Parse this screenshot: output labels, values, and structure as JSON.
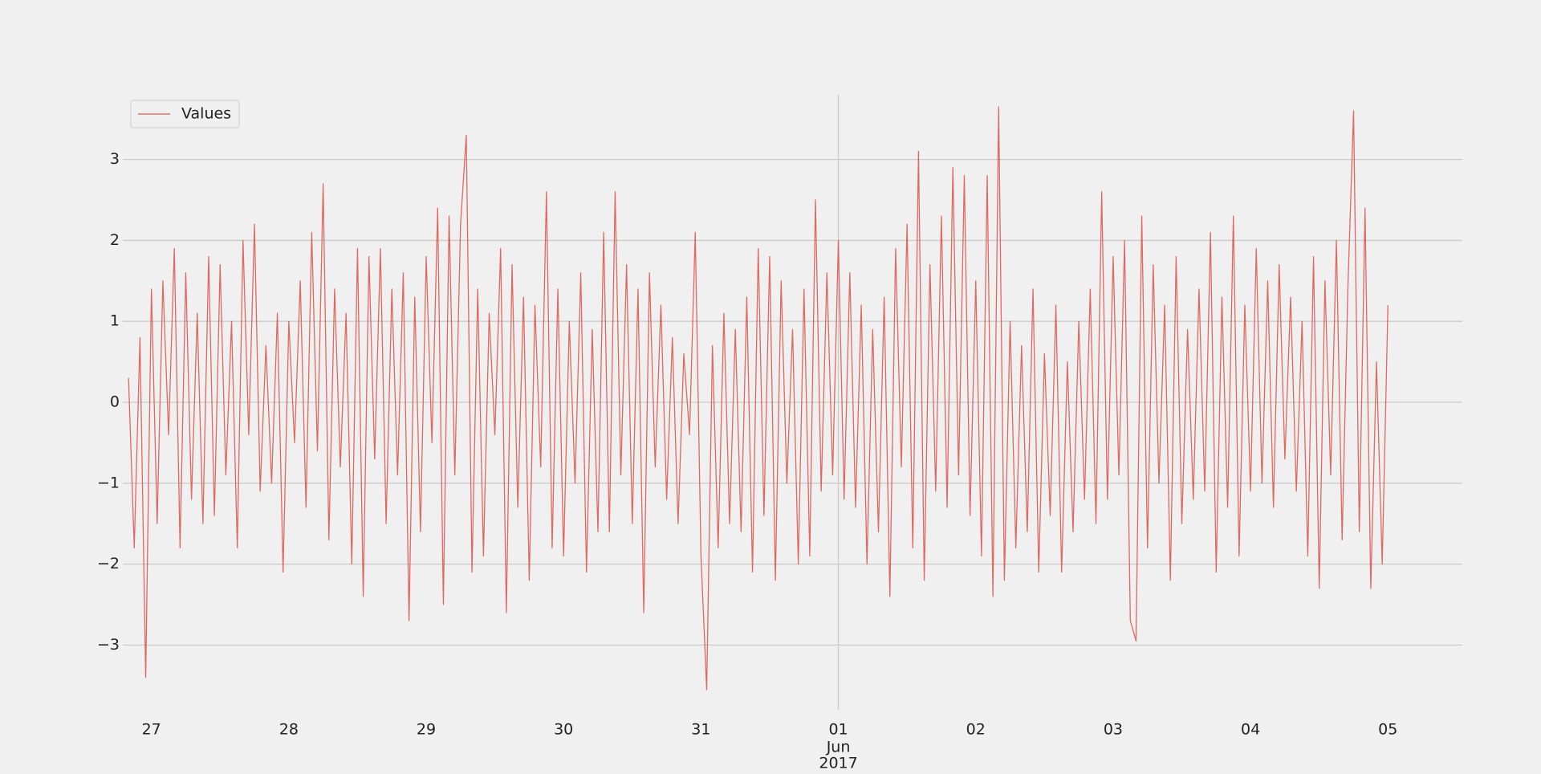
{
  "chart_data": {
    "type": "line",
    "x": [
      "2017-05-26T20:00",
      "2017-05-26T21:00",
      "2017-05-26T22:00",
      "2017-05-26T23:00",
      "2017-05-27T00:00",
      "2017-05-27T01:00",
      "2017-05-27T02:00",
      "2017-05-27T03:00",
      "2017-05-27T04:00",
      "2017-05-27T05:00",
      "2017-05-27T06:00",
      "2017-05-27T07:00",
      "2017-05-27T08:00",
      "2017-05-27T09:00",
      "2017-05-27T10:00",
      "2017-05-27T11:00",
      "2017-05-27T12:00",
      "2017-05-27T13:00",
      "2017-05-27T14:00",
      "2017-05-27T15:00",
      "2017-05-27T16:00",
      "2017-05-27T17:00",
      "2017-05-27T18:00",
      "2017-05-27T19:00",
      "2017-05-27T20:00",
      "2017-05-27T21:00",
      "2017-05-27T22:00",
      "2017-05-27T23:00",
      "2017-05-28T00:00",
      "2017-05-28T01:00",
      "2017-05-28T02:00",
      "2017-05-28T03:00",
      "2017-05-28T04:00",
      "2017-05-28T05:00",
      "2017-05-28T06:00",
      "2017-05-28T07:00",
      "2017-05-28T08:00",
      "2017-05-28T09:00",
      "2017-05-28T10:00",
      "2017-05-28T11:00",
      "2017-05-28T12:00",
      "2017-05-28T13:00",
      "2017-05-28T14:00",
      "2017-05-28T15:00",
      "2017-05-28T16:00",
      "2017-05-28T17:00",
      "2017-05-28T18:00",
      "2017-05-28T19:00",
      "2017-05-28T20:00",
      "2017-05-28T21:00",
      "2017-05-28T22:00",
      "2017-05-28T23:00",
      "2017-05-29T00:00",
      "2017-05-29T01:00",
      "2017-05-29T02:00",
      "2017-05-29T03:00",
      "2017-05-29T04:00",
      "2017-05-29T05:00",
      "2017-05-29T06:00",
      "2017-05-29T07:00",
      "2017-05-29T08:00",
      "2017-05-29T09:00",
      "2017-05-29T10:00",
      "2017-05-29T11:00",
      "2017-05-29T12:00",
      "2017-05-29T13:00",
      "2017-05-29T14:00",
      "2017-05-29T15:00",
      "2017-05-29T16:00",
      "2017-05-29T17:00",
      "2017-05-29T18:00",
      "2017-05-29T19:00",
      "2017-05-29T20:00",
      "2017-05-29T21:00",
      "2017-05-29T22:00",
      "2017-05-29T23:00",
      "2017-05-30T00:00",
      "2017-05-30T01:00",
      "2017-05-30T02:00",
      "2017-05-30T03:00",
      "2017-05-30T04:00",
      "2017-05-30T05:00",
      "2017-05-30T06:00",
      "2017-05-30T07:00",
      "2017-05-30T08:00",
      "2017-05-30T09:00",
      "2017-05-30T10:00",
      "2017-05-30T11:00",
      "2017-05-30T12:00",
      "2017-05-30T13:00",
      "2017-05-30T14:00",
      "2017-05-30T15:00",
      "2017-05-30T16:00",
      "2017-05-30T17:00",
      "2017-05-30T18:00",
      "2017-05-30T19:00",
      "2017-05-30T20:00",
      "2017-05-30T21:00",
      "2017-05-30T22:00",
      "2017-05-30T23:00",
      "2017-05-31T00:00",
      "2017-05-31T01:00",
      "2017-05-31T02:00",
      "2017-05-31T03:00",
      "2017-05-31T04:00",
      "2017-05-31T05:00",
      "2017-05-31T06:00",
      "2017-05-31T07:00",
      "2017-05-31T08:00",
      "2017-05-31T09:00",
      "2017-05-31T10:00",
      "2017-05-31T11:00",
      "2017-05-31T12:00",
      "2017-05-31T13:00",
      "2017-05-31T14:00",
      "2017-05-31T15:00",
      "2017-05-31T16:00",
      "2017-05-31T17:00",
      "2017-05-31T18:00",
      "2017-05-31T19:00",
      "2017-05-31T20:00",
      "2017-05-31T21:00",
      "2017-05-31T22:00",
      "2017-05-31T23:00",
      "2017-06-01T00:00",
      "2017-06-01T01:00",
      "2017-06-01T02:00",
      "2017-06-01T03:00",
      "2017-06-01T04:00",
      "2017-06-01T05:00",
      "2017-06-01T06:00",
      "2017-06-01T07:00",
      "2017-06-01T08:00",
      "2017-06-01T09:00",
      "2017-06-01T10:00",
      "2017-06-01T11:00",
      "2017-06-01T12:00",
      "2017-06-01T13:00",
      "2017-06-01T14:00",
      "2017-06-01T15:00",
      "2017-06-01T16:00",
      "2017-06-01T17:00",
      "2017-06-01T18:00",
      "2017-06-01T19:00",
      "2017-06-01T20:00",
      "2017-06-01T21:00",
      "2017-06-01T22:00",
      "2017-06-01T23:00",
      "2017-06-02T00:00",
      "2017-06-02T01:00",
      "2017-06-02T02:00",
      "2017-06-02T03:00",
      "2017-06-02T04:00",
      "2017-06-02T05:00",
      "2017-06-02T06:00",
      "2017-06-02T07:00",
      "2017-06-02T08:00",
      "2017-06-02T09:00",
      "2017-06-02T10:00",
      "2017-06-02T11:00",
      "2017-06-02T12:00",
      "2017-06-02T13:00",
      "2017-06-02T14:00",
      "2017-06-02T15:00",
      "2017-06-02T16:00",
      "2017-06-02T17:00",
      "2017-06-02T18:00",
      "2017-06-02T19:00",
      "2017-06-02T20:00",
      "2017-06-02T21:00",
      "2017-06-02T22:00",
      "2017-06-02T23:00",
      "2017-06-03T00:00",
      "2017-06-03T01:00",
      "2017-06-03T02:00",
      "2017-06-03T03:00",
      "2017-06-03T04:00",
      "2017-06-03T05:00",
      "2017-06-03T06:00",
      "2017-06-03T07:00",
      "2017-06-03T08:00",
      "2017-06-03T09:00",
      "2017-06-03T10:00",
      "2017-06-03T11:00",
      "2017-06-03T12:00",
      "2017-06-03T13:00",
      "2017-06-03T14:00",
      "2017-06-03T15:00",
      "2017-06-03T16:00",
      "2017-06-03T17:00",
      "2017-06-03T18:00",
      "2017-06-03T19:00",
      "2017-06-03T20:00",
      "2017-06-03T21:00",
      "2017-06-03T22:00",
      "2017-06-03T23:00",
      "2017-06-04T00:00",
      "2017-06-04T01:00",
      "2017-06-04T02:00",
      "2017-06-04T03:00",
      "2017-06-04T04:00",
      "2017-06-04T05:00",
      "2017-06-04T06:00",
      "2017-06-04T07:00",
      "2017-06-04T08:00",
      "2017-06-04T09:00",
      "2017-06-04T10:00",
      "2017-06-04T11:00",
      "2017-06-04T12:00",
      "2017-06-04T13:00",
      "2017-06-04T14:00",
      "2017-06-04T15:00",
      "2017-06-04T16:00",
      "2017-06-04T17:00",
      "2017-06-04T18:00",
      "2017-06-04T19:00",
      "2017-06-04T20:00",
      "2017-06-04T21:00",
      "2017-06-04T22:00",
      "2017-06-04T23:00",
      "2017-06-05T00:00"
    ],
    "series": [
      {
        "name": "Values",
        "color": "#dc5a50",
        "values": [
          0.3,
          -1.8,
          0.8,
          -3.4,
          1.4,
          -1.5,
          1.5,
          -0.4,
          1.9,
          -1.8,
          1.6,
          -1.2,
          1.1,
          -1.5,
          1.8,
          -1.4,
          1.7,
          -0.9,
          1.0,
          -1.8,
          2.0,
          -0.4,
          2.2,
          -1.1,
          0.7,
          -1.0,
          1.1,
          -2.1,
          1.0,
          -0.5,
          1.5,
          -1.3,
          2.1,
          -0.6,
          2.7,
          -1.7,
          1.4,
          -0.8,
          1.1,
          -2.0,
          1.9,
          -2.4,
          1.8,
          -0.7,
          1.9,
          -1.5,
          1.4,
          -0.9,
          1.6,
          -2.7,
          1.3,
          -1.6,
          1.8,
          -0.5,
          2.4,
          -2.5,
          2.3,
          -0.9,
          2.2,
          3.3,
          -2.1,
          1.4,
          -1.9,
          1.1,
          -0.4,
          1.9,
          -2.6,
          1.7,
          -1.3,
          1.3,
          -2.2,
          1.2,
          -0.8,
          2.6,
          -1.8,
          1.4,
          -1.9,
          1.0,
          -1.0,
          1.6,
          -2.1,
          0.9,
          -1.6,
          2.1,
          -1.6,
          2.6,
          -0.9,
          1.7,
          -1.5,
          1.4,
          -2.6,
          1.6,
          -0.8,
          1.2,
          -1.2,
          0.8,
          -1.5,
          0.6,
          -0.4,
          2.1,
          -1.9,
          -3.55,
          0.7,
          -1.8,
          1.1,
          -1.5,
          0.9,
          -1.6,
          1.3,
          -2.1,
          1.9,
          -1.4,
          1.8,
          -2.2,
          1.5,
          -1.0,
          0.9,
          -2.0,
          1.4,
          -1.9,
          2.5,
          -1.1,
          1.6,
          -0.9,
          2.0,
          -1.2,
          1.6,
          -1.3,
          1.2,
          -2.0,
          0.9,
          -1.6,
          1.3,
          -2.4,
          1.9,
          -0.8,
          2.2,
          -1.8,
          3.1,
          -2.2,
          1.7,
          -1.1,
          2.3,
          -1.3,
          2.9,
          -0.9,
          2.8,
          -1.4,
          1.5,
          -1.9,
          2.8,
          -2.4,
          3.65,
          -2.2,
          1.0,
          -1.8,
          0.7,
          -1.6,
          1.4,
          -2.1,
          0.6,
          -1.4,
          1.2,
          -2.1,
          0.5,
          -1.6,
          1.0,
          -1.2,
          1.4,
          -1.5,
          2.6,
          -1.2,
          1.8,
          -0.9,
          2.0,
          -2.7,
          -2.95,
          2.3,
          -1.8,
          1.7,
          -1.0,
          1.2,
          -2.2,
          1.8,
          -1.5,
          0.9,
          -1.2,
          1.4,
          -1.1,
          2.1,
          -2.1,
          1.3,
          -1.3,
          2.3,
          -1.9,
          1.2,
          -1.1,
          1.9,
          -1.0,
          1.5,
          -1.3,
          1.7,
          -0.7,
          1.3,
          -1.1,
          1.0,
          -1.9,
          1.8,
          -2.3,
          1.5,
          -0.9,
          2.0,
          -1.7,
          1.4,
          3.6,
          -1.6,
          2.4,
          -2.3,
          0.5,
          -2.0,
          1.2
        ]
      }
    ],
    "xlim": [
      "2017-05-26T19:00",
      "2017-06-05T13:00"
    ],
    "xticks": [
      {
        "value": "2017-05-27T00:00",
        "label": "27"
      },
      {
        "value": "2017-05-28T00:00",
        "label": "28"
      },
      {
        "value": "2017-05-29T00:00",
        "label": "29"
      },
      {
        "value": "2017-05-30T00:00",
        "label": "30"
      },
      {
        "value": "2017-05-31T00:00",
        "label": "31"
      },
      {
        "value": "2017-06-01T00:00",
        "label": "01"
      },
      {
        "value": "2017-06-02T00:00",
        "label": "02"
      },
      {
        "value": "2017-06-03T00:00",
        "label": "03"
      },
      {
        "value": "2017-06-04T00:00",
        "label": "04"
      },
      {
        "value": "2017-06-05T00:00",
        "label": "05"
      }
    ],
    "xticks_major": [
      {
        "value": "2017-06-01T00:00",
        "label": "Jun"
      },
      {
        "value": "2017-06-01T00:00",
        "label": "2017"
      }
    ],
    "ylim": [
      -3.8,
      3.8
    ],
    "yticks": [
      {
        "value": -3,
        "label": "−3"
      },
      {
        "value": -2,
        "label": "−2"
      },
      {
        "value": -1,
        "label": "−1"
      },
      0,
      1,
      2,
      3
    ],
    "grid": true,
    "legend": "upper left"
  }
}
